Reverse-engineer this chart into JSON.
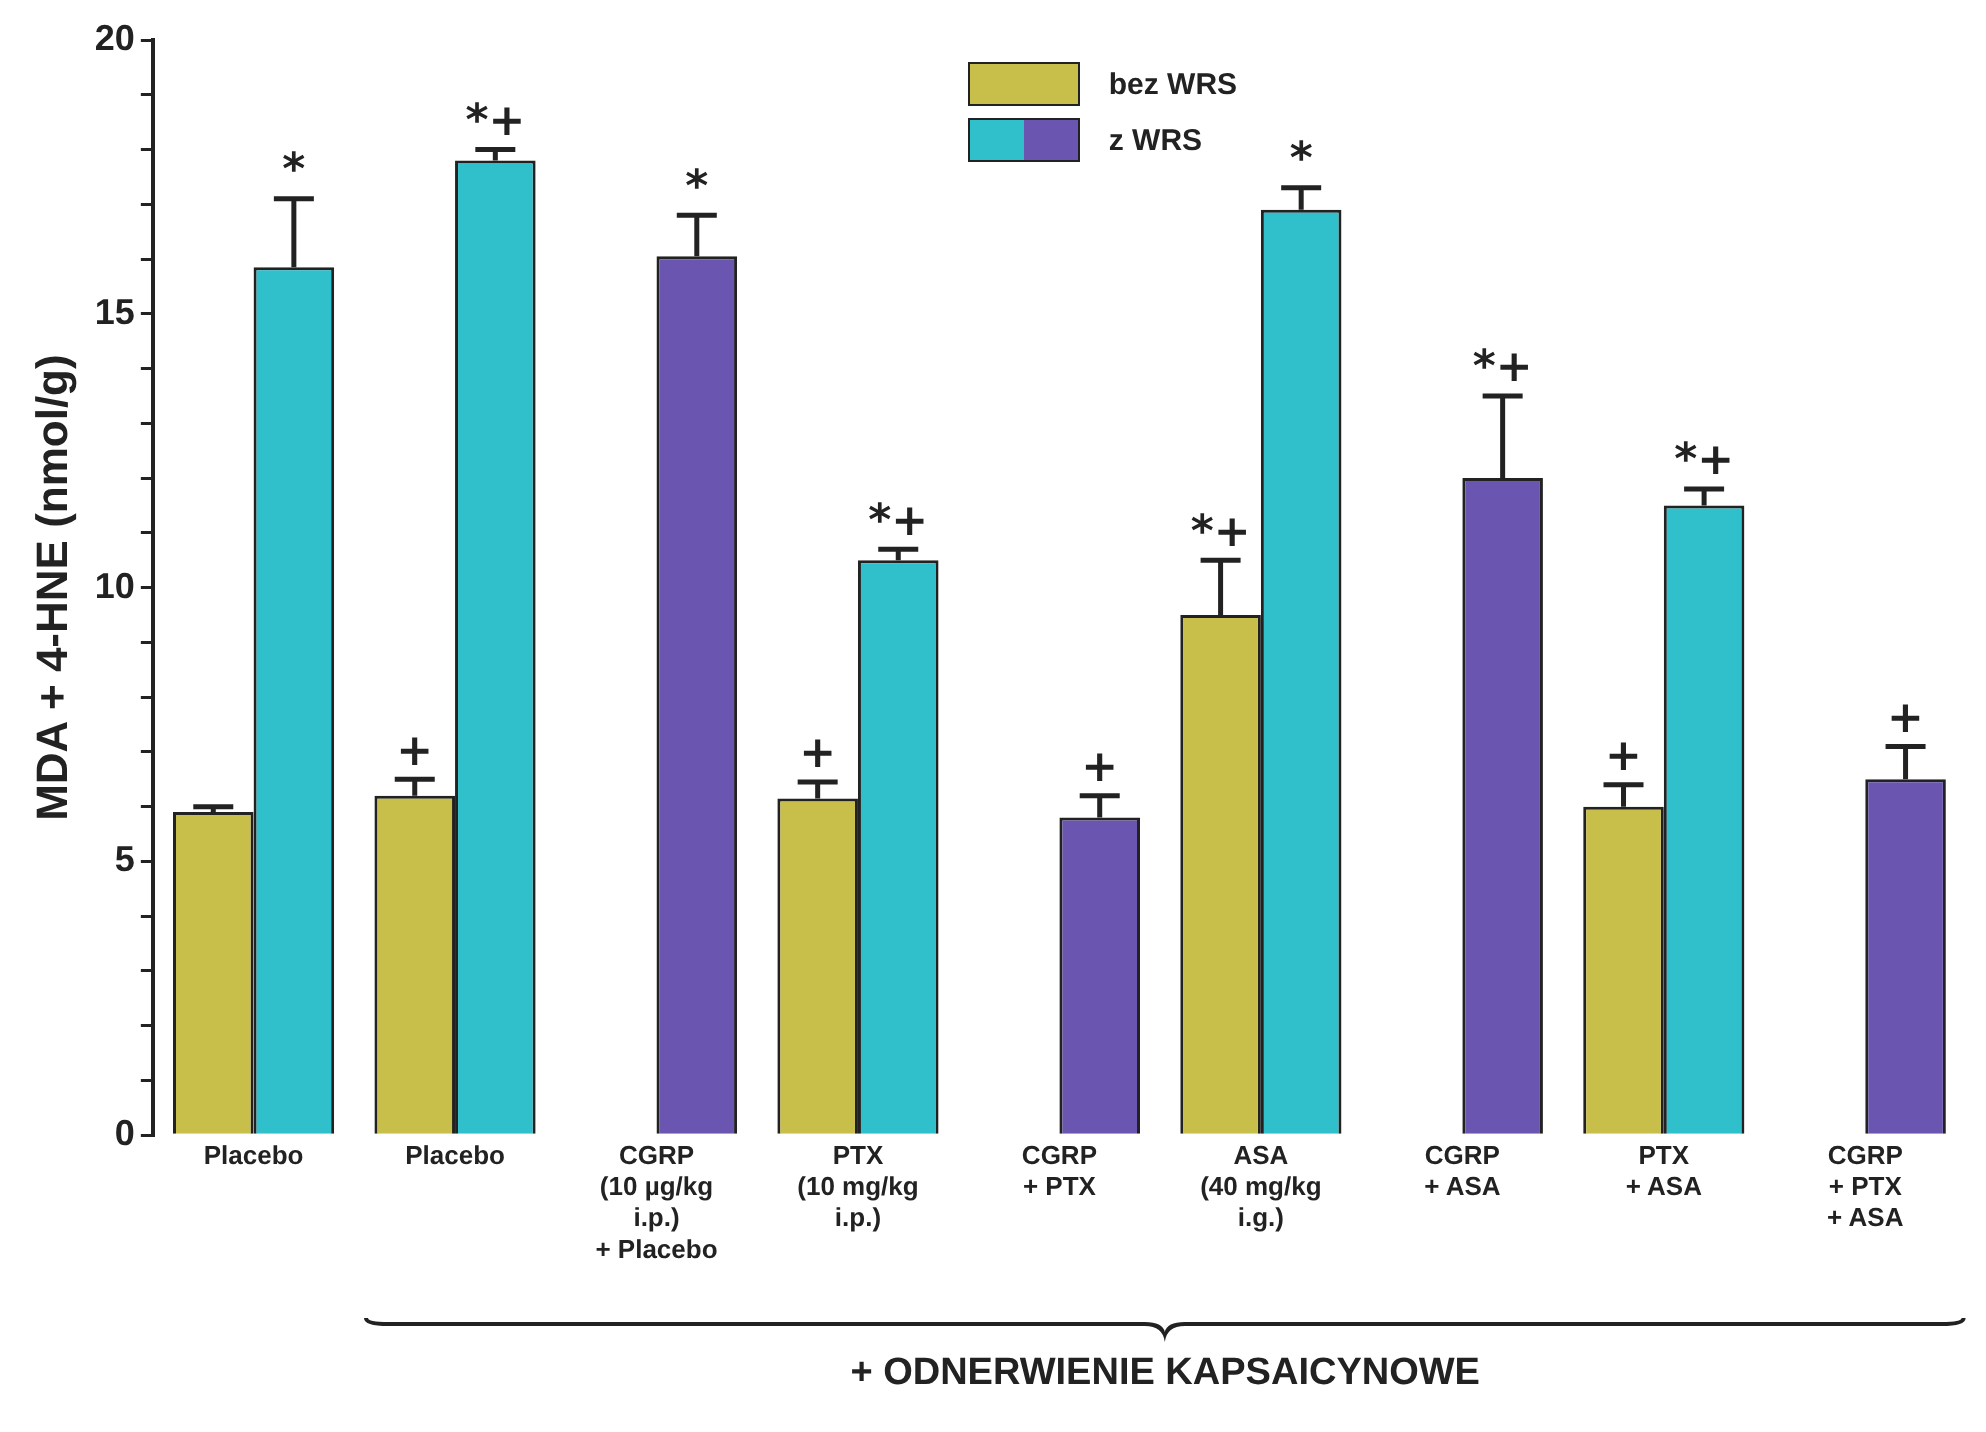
{
  "chart_data": {
    "type": "bar",
    "ylabel": "MDA + 4-HNE (nmol/g)",
    "categories": [
      "Placebo",
      "Placebo",
      "CGRP\n(10 µg/kg\ni.p.)\n+ Placebo",
      "PTX\n(10 mg/kg\ni.p.)",
      "CGRP\n+ PTX",
      "ASA\n(40 mg/kg\ni.g.)",
      "CGRP\n+ ASA",
      "PTX\n+ ASA",
      "CGRP\n+ PTX\n+ ASA"
    ],
    "series": [
      {
        "name": "bez WRS",
        "color": "#c8bf4a",
        "values": [
          5.9,
          6.2,
          null,
          6.15,
          null,
          9.5,
          null,
          6.0,
          null
        ],
        "errors": [
          [
            5.9,
            6.0
          ],
          [
            6.2,
            6.5
          ],
          null,
          [
            6.15,
            6.45
          ],
          null,
          [
            9.5,
            10.5
          ],
          null,
          [
            6.0,
            6.4
          ],
          null
        ],
        "value_labels": [
          null,
          "+",
          null,
          "+",
          null,
          "*+",
          null,
          "+",
          null
        ]
      },
      {
        "name": "z WRS",
        "colors": [
          "#2fc0cc",
          "#2fc0cc",
          "#6a55b0",
          "#2fc0cc",
          "#6a55b0",
          "#2fc0cc",
          "#6a55b0",
          "#2fc0cc",
          "#6a55b0"
        ],
        "values": [
          15.85,
          17.8,
          16.05,
          10.5,
          5.8,
          16.9,
          12.0,
          11.5,
          6.5
        ],
        "errors": [
          [
            15.85,
            17.1
          ],
          [
            17.8,
            18.0
          ],
          [
            16.05,
            16.8
          ],
          [
            10.5,
            10.7
          ],
          [
            5.8,
            6.2
          ],
          [
            16.9,
            17.3
          ],
          [
            12.0,
            13.5
          ],
          [
            11.5,
            11.8
          ],
          [
            6.5,
            7.1
          ]
        ],
        "value_labels": [
          "*",
          "*+",
          "*",
          "*+",
          "+",
          "*",
          "*+",
          "*+",
          "+"
        ]
      }
    ],
    "ylim": [
      0,
      20
    ],
    "yticks": [
      0,
      {
        "value": 1,
        "label": null
      },
      {
        "value": 2,
        "label": null
      },
      {
        "value": 3,
        "label": null
      },
      {
        "value": 4,
        "label": null
      },
      5,
      {
        "value": 6,
        "label": null
      },
      {
        "value": 7,
        "label": null
      },
      {
        "value": 8,
        "label": null
      },
      {
        "value": 9,
        "label": null
      },
      10,
      {
        "value": 11,
        "label": null
      },
      {
        "value": 12,
        "label": null
      },
      {
        "value": 13,
        "label": null
      },
      {
        "value": 14,
        "label": null
      },
      15,
      {
        "value": 16,
        "label": null
      },
      {
        "value": 17,
        "label": null
      },
      {
        "value": 18,
        "label": null
      },
      {
        "value": 19,
        "label": null
      },
      20
    ],
    "grid": false,
    "legend": "top",
    "annotations": [
      "+ ODNERWIENIE KAPSAICYNOWE"
    ]
  }
}
